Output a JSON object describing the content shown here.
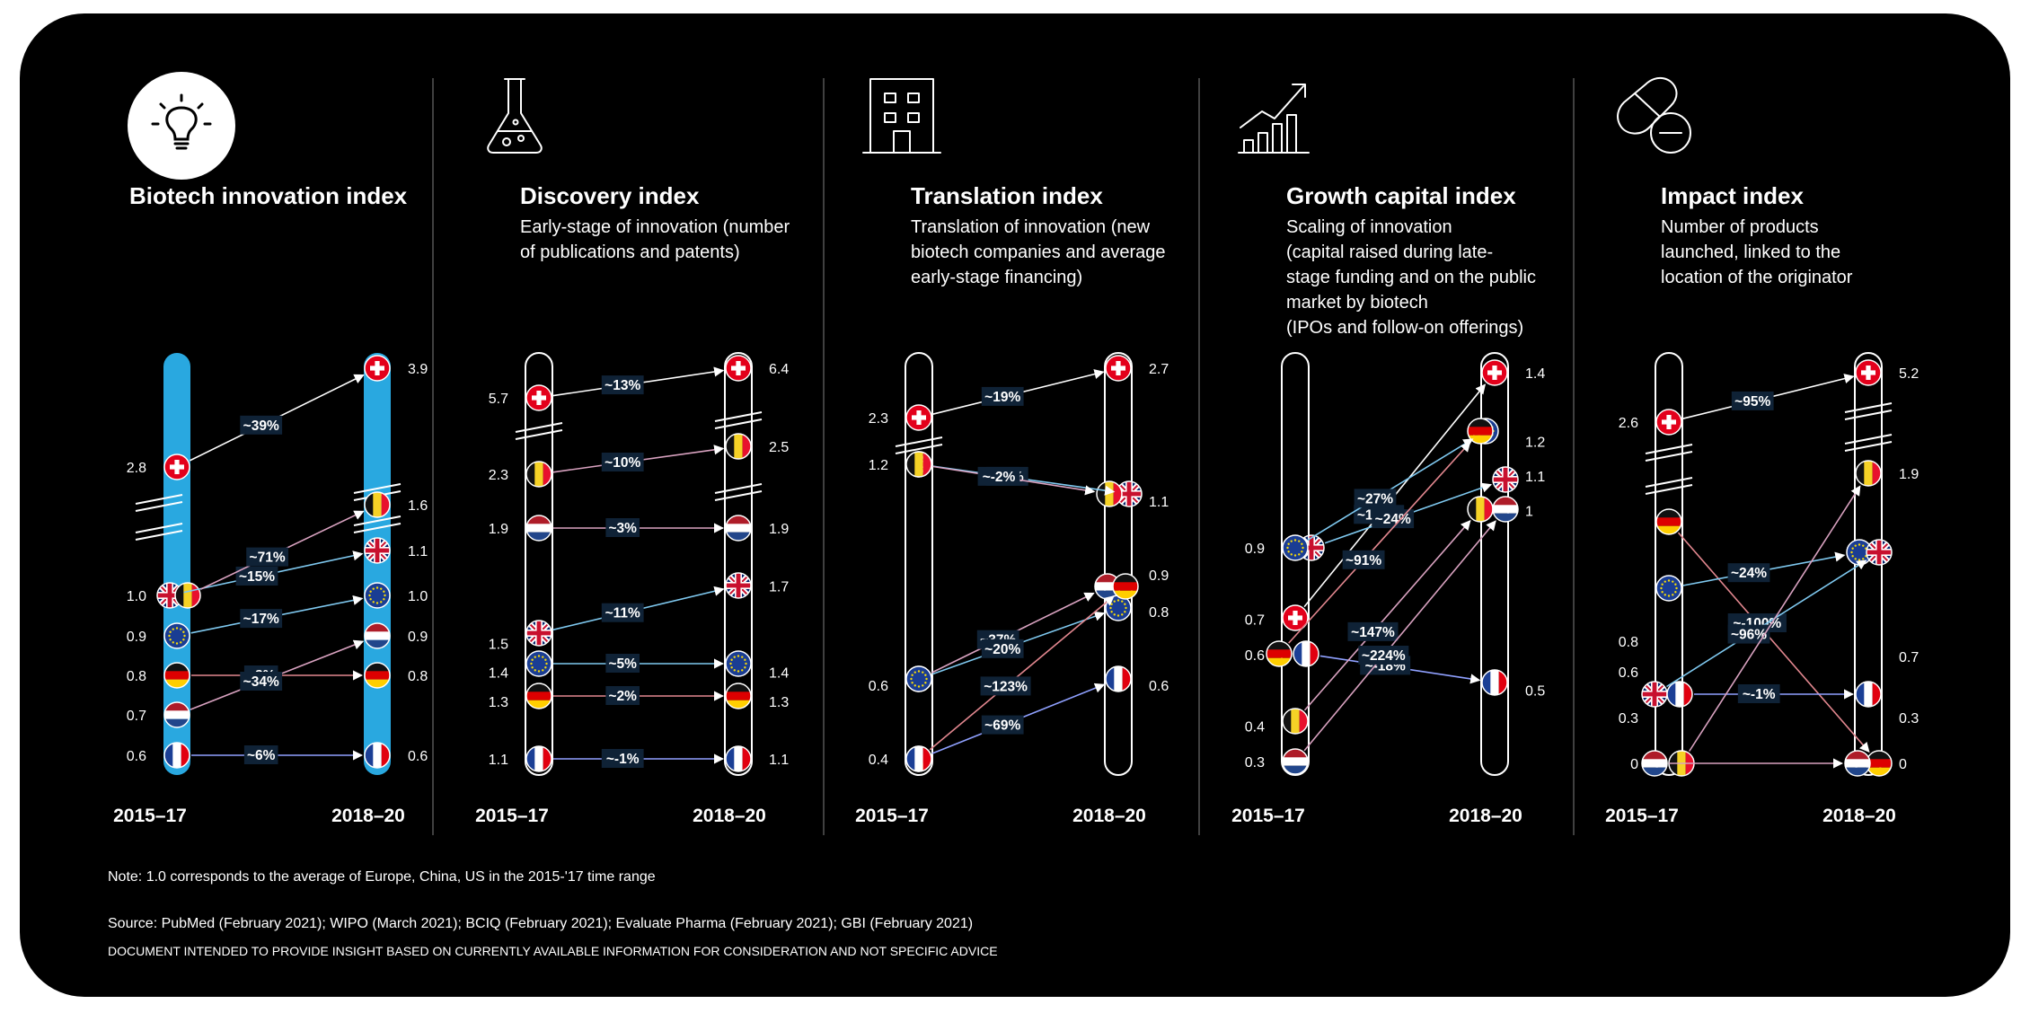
{
  "note": "Note: 1.0 corresponds to the average of Europe, China, US in the 2015-'17 time range",
  "source": "Source: PubMed (February 2021); WIPO (March 2021); BCIQ (February 2021); Evaluate Pharma (February 2021); GBI (February 2021)",
  "disclaimer": "DOCUMENT INTENDED TO PROVIDE INSIGHT BASED ON CURRENTLY AVAILABLE INFORMATION FOR CONSIDERATION AND NOT SPECIFIC ADVICE",
  "periods": [
    "2015–17",
    "2018–20"
  ],
  "countries": {
    "CH": "Switzerland",
    "UK": "United Kingdom",
    "BE": "Belgium",
    "EU": "Europe",
    "NL": "Netherlands",
    "DE": "Germany",
    "FR": "France"
  },
  "icons": [
    "lightbulb-icon",
    "flask-icon",
    "building-icon",
    "growth-chart-icon",
    "pill-icon"
  ],
  "colors": {
    "background": "#000000",
    "highlight_bar": "#29a8e0",
    "arrow": "#ffffff"
  },
  "chart_data": [
    {
      "type": "slope",
      "title": "Biotech innovation index",
      "subtitle": [],
      "highlighted": true,
      "series": [
        {
          "country": "CH",
          "from": 2.8,
          "to": 3.9,
          "change": "~39%"
        },
        {
          "country": "UK",
          "from": 1.0,
          "to": 1.1,
          "change": "~15%"
        },
        {
          "country": "BE",
          "from": 1.0,
          "to": 1.6,
          "change": "~71%"
        },
        {
          "country": "EU",
          "from": 0.9,
          "to": 1.0,
          "change": "~17%"
        },
        {
          "country": "DE",
          "from": 0.8,
          "to": 0.8,
          "change": "~8%"
        },
        {
          "country": "NL",
          "from": 0.7,
          "to": 0.9,
          "change": "~34%"
        },
        {
          "country": "FR",
          "from": 0.6,
          "to": 0.6,
          "change": "~6%"
        }
      ],
      "left_labels": [
        "2.8",
        "1.0",
        "0.9",
        "0.8",
        "0.7",
        "0.6"
      ],
      "right_labels": [
        "3.9",
        "1.6",
        "1.1",
        "1.0",
        "0.9",
        "0.8",
        "0.6"
      ]
    },
    {
      "type": "slope",
      "title": "Discovery index",
      "subtitle": [
        "Early-stage of innovation (number",
        "of publications and patents)"
      ],
      "series": [
        {
          "country": "CH",
          "from": 5.7,
          "to": 6.4,
          "change": "~13%"
        },
        {
          "country": "BE",
          "from": 2.3,
          "to": 2.5,
          "change": "~10%"
        },
        {
          "country": "NL",
          "from": 1.9,
          "to": 1.9,
          "change": "~3%"
        },
        {
          "country": "UK",
          "from": 1.5,
          "to": 1.7,
          "change": "~11%"
        },
        {
          "country": "EU",
          "from": 1.4,
          "to": 1.4,
          "change": "~5%"
        },
        {
          "country": "DE",
          "from": 1.3,
          "to": 1.3,
          "change": "~2%"
        },
        {
          "country": "FR",
          "from": 1.1,
          "to": 1.1,
          "change": "~-1%"
        }
      ],
      "left_labels": [
        "5.7",
        "2.3",
        "1.9",
        "1.5",
        "1.4",
        "1.3",
        "1.1"
      ],
      "right_labels": [
        "6.4",
        "2.5",
        "1.9",
        "1.7",
        "1.4",
        "1.3",
        "1.1"
      ]
    },
    {
      "type": "slope",
      "title": "Translation index",
      "subtitle": [
        "Translation of innovation (new",
        "biotech companies and average",
        "early-stage financing)"
      ],
      "series": [
        {
          "country": "CH",
          "from": 2.3,
          "to": 2.7,
          "change": "~19%"
        },
        {
          "country": "UK",
          "from": 1.2,
          "to": 1.1,
          "change": "~-8%"
        },
        {
          "country": "BE",
          "from": 1.2,
          "to": 1.1,
          "change": "~-2%"
        },
        {
          "country": "NL",
          "from": 0.6,
          "to": 0.9,
          "change": "~37%"
        },
        {
          "country": "EU",
          "from": 0.6,
          "to": 0.8,
          "change": "~20%"
        },
        {
          "country": "DE",
          "from": 0.4,
          "to": 0.9,
          "change": "~123%"
        },
        {
          "country": "FR",
          "from": 0.4,
          "to": 0.6,
          "change": "~69%"
        }
      ],
      "left_labels": [
        "2.3",
        "1.2",
        "0.6",
        "0.4"
      ],
      "right_labels": [
        "2.7",
        "1.1",
        "0.9",
        "0.8",
        "0.6"
      ]
    },
    {
      "type": "slope",
      "title": "Growth capital index",
      "subtitle": [
        "Scaling of innovation",
        "(capital raised during late-",
        "stage funding and on the public",
        "market by biotech",
        "(IPOs and follow-on offerings)"
      ],
      "series": [
        {
          "country": "CH",
          "from": 0.7,
          "to": 1.4,
          "change": "~106%"
        },
        {
          "country": "UK",
          "from": 0.9,
          "to": 1.1,
          "change": "~24%"
        },
        {
          "country": "EU",
          "from": 0.9,
          "to": 1.2,
          "change": "~27%"
        },
        {
          "country": "DE",
          "from": 0.6,
          "to": 1.2,
          "change": "~91%"
        },
        {
          "country": "FR",
          "from": 0.6,
          "to": 0.5,
          "change": "~-18%"
        },
        {
          "country": "BE",
          "from": 0.4,
          "to": 1.0,
          "change": "~147%"
        },
        {
          "country": "NL",
          "from": 0.3,
          "to": 1.0,
          "change": "~224%"
        }
      ],
      "left_labels": [
        "0.9",
        "0.7",
        "0.6",
        "0.4",
        "0.3"
      ],
      "right_labels": [
        "1.4",
        "1.2",
        "1.1",
        "1",
        "0.5"
      ]
    },
    {
      "type": "slope",
      "title": "Impact index",
      "subtitle": [
        "Number of products",
        "launched, linked to the",
        "location of the originator"
      ],
      "series": [
        {
          "country": "CH",
          "from": 2.6,
          "to": 5.2,
          "change": "~95%"
        },
        {
          "country": "DE",
          "from": 0.8,
          "to": 0,
          "change": "~-100%"
        },
        {
          "country": "EU",
          "from": 0.6,
          "to": 0.7,
          "change": "~24%"
        },
        {
          "country": "UK",
          "from": 0.3,
          "to": 0.7,
          "change": "~96%"
        },
        {
          "country": "FR",
          "from": 0.3,
          "to": 0.3,
          "change": "~-1%"
        },
        {
          "country": "NL",
          "from": 0,
          "to": 0,
          "change": ""
        },
        {
          "country": "BE",
          "from": 0,
          "to": 1.9,
          "change": ""
        }
      ],
      "left_labels": [
        "2.6",
        "0.8",
        "0.6",
        "0.3",
        "0"
      ],
      "right_labels": [
        "5.2",
        "1.9",
        "0.7",
        "0.3",
        "0"
      ]
    }
  ]
}
